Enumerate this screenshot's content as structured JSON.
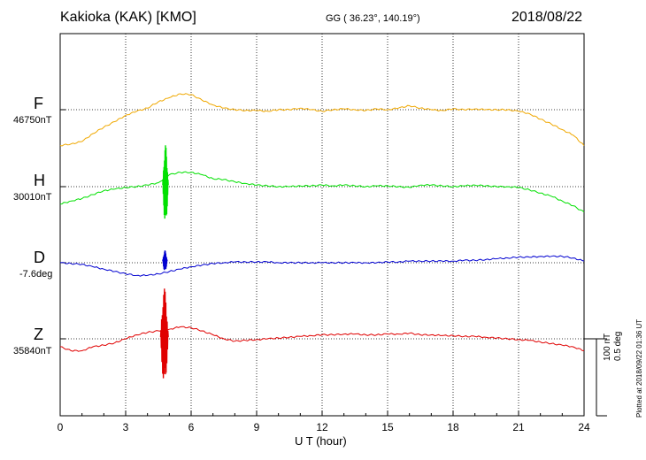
{
  "header": {
    "title": "Kakioka (KAK)  [KMO]",
    "coords": "GG ( 36.23°, 140.19°)",
    "date": "2018/08/22"
  },
  "footer": {
    "plotted": "Plotted at 2018/09/22 01:36 UT",
    "scale_nt": "100 nT",
    "scale_deg": "0.5 deg"
  },
  "chart_data": {
    "type": "line",
    "xlabel": "U T (hour)",
    "xlim": [
      0,
      24
    ],
    "xticks": [
      "0",
      "3",
      "6",
      "9",
      "12",
      "15",
      "18",
      "21",
      "24"
    ],
    "grid": true,
    "components": [
      {
        "letter": "F",
        "baseline": "46750nT",
        "color": "#f0a800"
      },
      {
        "letter": "H",
        "baseline": "30010nT",
        "color": "#00e000"
      },
      {
        "letter": "D",
        "baseline": "-7.6deg",
        "color": "#0000d0"
      },
      {
        "letter": "Z",
        "baseline": "35840nT",
        "color": "#e00000"
      }
    ],
    "series": [
      {
        "name": "F",
        "x": [
          0,
          0.5,
          1,
          1.5,
          2,
          2.5,
          3,
          3.5,
          4,
          4.5,
          5,
          5.5,
          6,
          6.5,
          7,
          7.5,
          8,
          8.5,
          9,
          9.5,
          10,
          10.5,
          11,
          11.5,
          12,
          12.5,
          13,
          13.5,
          14,
          14.5,
          15,
          15.5,
          16,
          16.5,
          17,
          17.5,
          18,
          18.5,
          19,
          19.5,
          20,
          20.5,
          21,
          21.5,
          22,
          22.5,
          23,
          23.5,
          24
        ],
        "values": [
          -45,
          -43,
          -40,
          -30,
          -22,
          -15,
          -7,
          -2,
          2,
          10,
          15,
          20,
          19,
          12,
          6,
          2,
          0,
          -1,
          -1,
          -2,
          0,
          0,
          2,
          0,
          -2,
          0,
          1,
          0,
          -1,
          1,
          0,
          2,
          5,
          2,
          0,
          -1,
          1,
          0,
          1,
          0,
          0,
          0,
          -2,
          -5,
          -12,
          -18,
          -25,
          -32,
          -45
        ],
        "burst": null
      },
      {
        "name": "H",
        "x": [
          0,
          0.5,
          1,
          1.5,
          2,
          2.5,
          3,
          3.5,
          4,
          4.5,
          5,
          5.5,
          6,
          6.5,
          7,
          7.5,
          8,
          8.5,
          9,
          9.5,
          10,
          10.5,
          11,
          11.5,
          12,
          12.5,
          13,
          13.5,
          14,
          14.5,
          15,
          15.5,
          16,
          16.5,
          17,
          17.5,
          18,
          18.5,
          19,
          19.5,
          20,
          20.5,
          21,
          21.5,
          22,
          22.5,
          23,
          23.5,
          24
        ],
        "values": [
          -22,
          -18,
          -15,
          -10,
          -5,
          -3,
          -1,
          0,
          2,
          5,
          15,
          18,
          18,
          15,
          10,
          9,
          6,
          4,
          2,
          1,
          0,
          0,
          1,
          1,
          2,
          1,
          2,
          1,
          0,
          1,
          1,
          0,
          -1,
          2,
          2,
          1,
          0,
          1,
          2,
          1,
          0,
          0,
          -1,
          -4,
          -8,
          -12,
          -18,
          -24,
          -32
        ],
        "burst": {
          "x_start": 4.7,
          "x_end": 4.95,
          "amplitude": 45
        }
      },
      {
        "name": "D",
        "x": [
          0,
          0.5,
          1,
          1.5,
          2,
          2.5,
          3,
          3.5,
          4,
          4.5,
          5,
          5.5,
          6,
          6.5,
          7,
          7.5,
          8,
          8.5,
          9,
          9.5,
          10,
          10.5,
          11,
          11.5,
          12,
          12.5,
          13,
          13.5,
          14,
          14.5,
          15,
          15.5,
          16,
          16.5,
          17,
          17.5,
          18,
          18.5,
          19,
          19.5,
          20,
          20.5,
          21,
          21.5,
          22,
          22.5,
          23,
          23.5,
          24
        ],
        "values": [
          0,
          -1,
          -2,
          -5,
          -8,
          -11,
          -14,
          -16,
          -16,
          -14,
          -11,
          -8,
          -5,
          -3,
          -1,
          0,
          1,
          1,
          1,
          1,
          0,
          0,
          0,
          0,
          0,
          0,
          0,
          0,
          0,
          0,
          1,
          1,
          2,
          2,
          2,
          2,
          2,
          3,
          3,
          4,
          5,
          6,
          7,
          7,
          8,
          8,
          8,
          6,
          2
        ],
        "burst": {
          "x_start": 4.7,
          "x_end": 4.9,
          "amplitude": 12
        }
      },
      {
        "name": "Z",
        "x": [
          0,
          0.5,
          1,
          1.5,
          2,
          2.5,
          3,
          3.5,
          4,
          4.5,
          5,
          5.5,
          6,
          6.5,
          7,
          7.5,
          8,
          8.5,
          9,
          9.5,
          10,
          10.5,
          11,
          11.5,
          12,
          12.5,
          13,
          13.5,
          14,
          14.5,
          15,
          15.5,
          16,
          16.5,
          17,
          17.5,
          18,
          18.5,
          19,
          19.5,
          20,
          20.5,
          21,
          21.5,
          22,
          22.5,
          23,
          23.5,
          24
        ],
        "values": [
          -10,
          -15,
          -15,
          -10,
          -8,
          -5,
          0,
          5,
          8,
          10,
          12,
          15,
          14,
          10,
          5,
          0,
          -3,
          -2,
          -1,
          0,
          1,
          2,
          3,
          4,
          5,
          5,
          6,
          6,
          5,
          5,
          6,
          6,
          7,
          5,
          5,
          4,
          4,
          3,
          3,
          2,
          1,
          0,
          -1,
          -2,
          -4,
          -6,
          -8,
          -10,
          -15
        ],
        "burst": {
          "x_start": 4.6,
          "x_end": 4.95,
          "amplitude": 55
        }
      }
    ]
  }
}
